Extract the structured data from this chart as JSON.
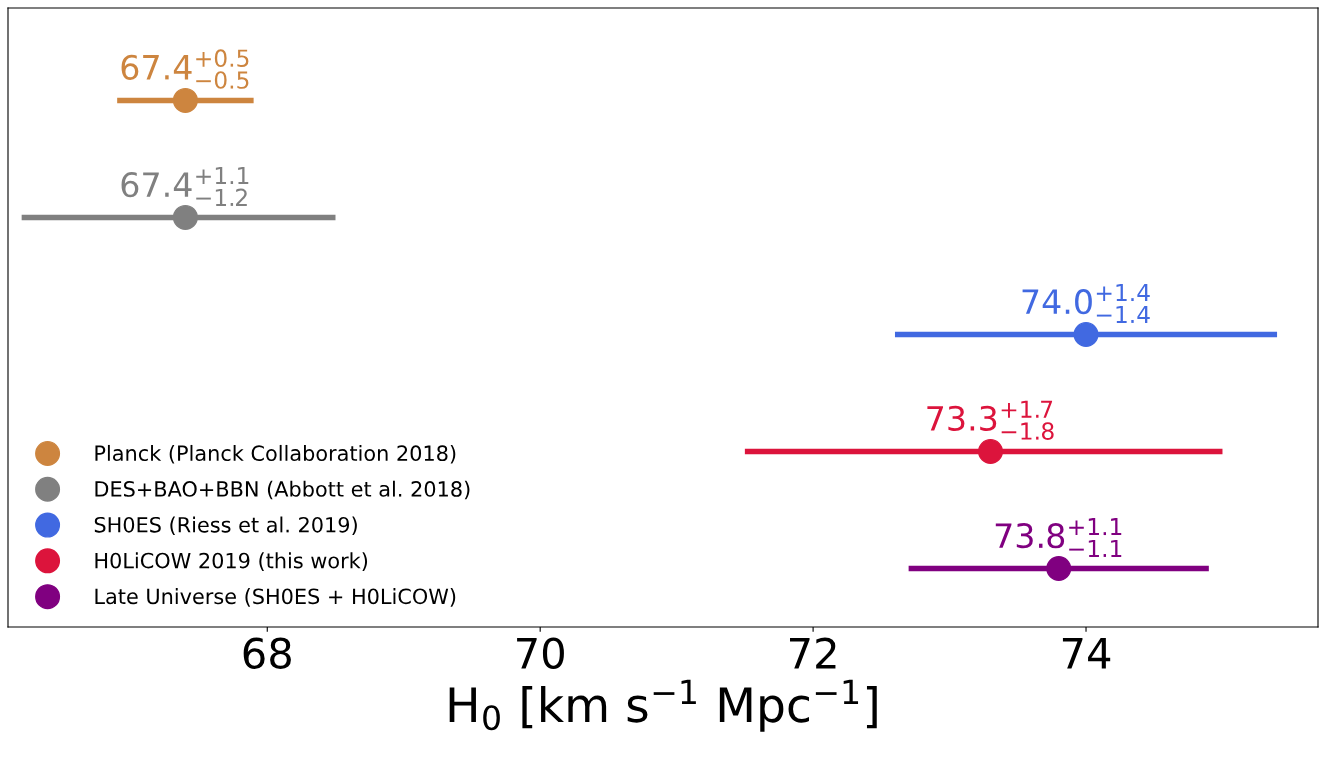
{
  "chart_data": {
    "type": "scatter",
    "orientation": "horizontal",
    "categories": [
      null,
      null,
      null,
      null,
      null
    ],
    "xlabel": "H$_{0}$ [km s$^{−1}$ Mpc$^{−1}$]",
    "xlim": [
      66.1,
      75.7
    ],
    "xticks": [
      68,
      70,
      72,
      74
    ],
    "tick_labels": "x",
    "grid": false,
    "legend": "bottom left",
    "marker": "circle",
    "series": [
      {
        "name": "Planck (Planck Collaboration 2018)",
        "color": "#cd853f",
        "values": [
          67.4,
          null,
          null,
          null,
          null
        ],
        "errors": [
          [
            66.9,
            67.9
          ],
          null,
          null,
          null,
          null
        ],
        "value_labels": [
          "67.4$^{+0.5}$$_{−0.5}$",
          null,
          null,
          null,
          null
        ]
      },
      {
        "name": "DES+BAO+BBN (Abbott et al. 2018)",
        "color": "#808080",
        "values": [
          null,
          67.4,
          null,
          null,
          null
        ],
        "errors": [
          null,
          [
            66.2,
            68.5
          ],
          null,
          null,
          null
        ],
        "value_labels": [
          null,
          "67.4$^{+1.1}$$_{−1.2}$",
          null,
          null,
          null
        ]
      },
      {
        "name": "SH0ES (Riess et al. 2019)",
        "color": "#4169e1",
        "values": [
          null,
          null,
          74.0,
          null,
          null
        ],
        "errors": [
          null,
          null,
          [
            72.6,
            75.4
          ],
          null,
          null
        ],
        "value_labels": [
          null,
          null,
          "74.0$^{+1.4}$$_{−1.4}$",
          null,
          null
        ]
      },
      {
        "name": "H0LiCOW 2019 (this work)",
        "color": "#dc143c",
        "values": [
          null,
          null,
          null,
          73.3,
          null
        ],
        "errors": [
          null,
          null,
          null,
          [
            71.5,
            75.0
          ],
          null
        ],
        "value_labels": [
          null,
          null,
          null,
          "73.3$^{+1.7}$$_{−1.8}$",
          null
        ]
      },
      {
        "name": "Late Universe (SH0ES + H0LiCOW)",
        "color": "#800080",
        "values": [
          null,
          null,
          null,
          null,
          73.8
        ],
        "errors": [
          null,
          null,
          null,
          null,
          [
            72.7,
            74.9
          ]
        ],
        "value_labels": [
          null,
          null,
          null,
          null,
          "73.8$^{+1.1}$$_{−1.1}$"
        ]
      }
    ]
  }
}
